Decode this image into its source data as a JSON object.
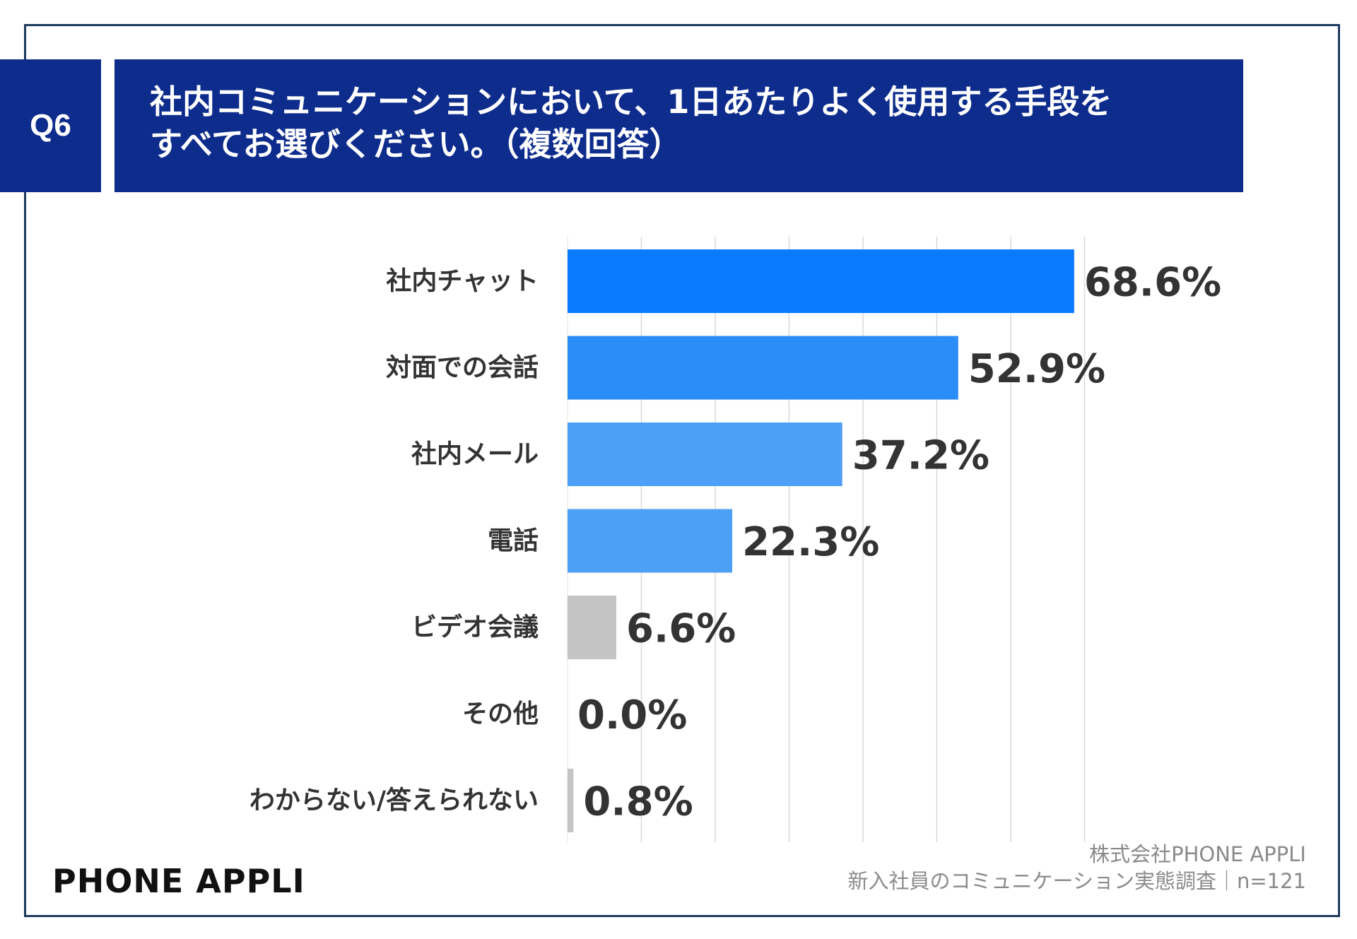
{
  "question": {
    "label": "Q6",
    "title_line1": "社内コミュニケーションにおいて、1日あたりよく使用する手段を",
    "title_line2": "すべてお選びください。（複数回答）"
  },
  "chart_data": {
    "type": "bar",
    "orientation": "horizontal",
    "categories": [
      "社内チャット",
      "対面での会話",
      "社内メール",
      "電話",
      "ビデオ会議",
      "その他",
      "わからない/答えられない"
    ],
    "values": [
      68.6,
      52.9,
      37.2,
      22.3,
      6.6,
      0.0,
      0.8
    ],
    "value_labels": [
      "68.6%",
      "52.9%",
      "37.2%",
      "22.3%",
      "6.6%",
      "0.0%",
      "0.8%"
    ],
    "bar_colors": [
      "#0a7bff",
      "#2b8ef8",
      "#4da0f6",
      "#4da0f6",
      "#c4c4c4",
      "#c4c4c4",
      "#c4c4c4"
    ],
    "xlim": [
      0,
      70
    ],
    "grid_step": 10,
    "grid": true,
    "unit": "%"
  },
  "footer": {
    "brand": "PHONE  APPLI",
    "source_line1": "株式会社PHONE APPLI",
    "source_line2": "新入社員のコミュニケーション実態調査｜n=121"
  }
}
